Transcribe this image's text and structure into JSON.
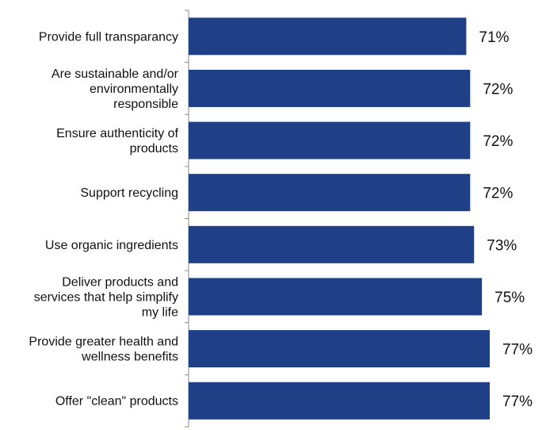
{
  "chart_data": {
    "type": "bar",
    "orientation": "horizontal",
    "categories": [
      "Provide full transparancy",
      "Are sustainable and/or environmentally responsible",
      "Ensure authenticity of products",
      "Support recycling",
      "Use organic ingredients",
      "Deliver products and services that help simplify my life",
      "Provide greater health and wellness benefits",
      "Offer \"clean\" products"
    ],
    "values": [
      71,
      72,
      72,
      72,
      73,
      75,
      77,
      77
    ],
    "value_labels": [
      "71%",
      "72%",
      "72%",
      "72%",
      "73%",
      "75%",
      "77%",
      "77%"
    ],
    "bar_color": "#1f3f87",
    "unit": "%",
    "grid": false,
    "legend": "none"
  }
}
